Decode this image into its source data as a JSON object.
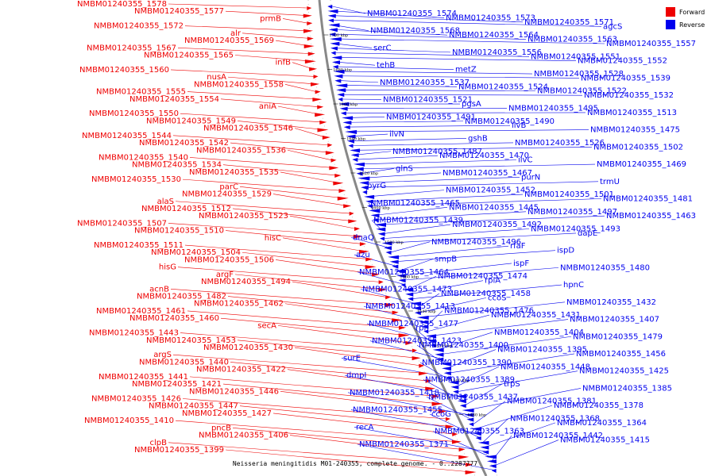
{
  "caption": "Neisseria meningitidis M01-240355, complete genome. - 0..2287777",
  "legend": [
    {
      "label": "Forward",
      "color": "#ee0000"
    },
    {
      "label": "Reverse",
      "color": "#0000ee"
    }
  ],
  "colors": {
    "forward": "#ee0000",
    "reverse": "#0000ee",
    "backbone": "#888888"
  },
  "ticks": [
    "1700 kbp",
    "1680 kbp",
    "1660 kbp",
    "1640 kbp",
    "1620 kbp",
    "1600 kbp",
    "1580 kbp",
    "1560 kbp",
    "1540 kbp",
    "1520 kbp",
    "1500 kbp",
    "1480 kbp"
  ],
  "forward_labels": [
    "NMBM01240355_1578",
    "NMBM01240355_1577",
    "prmB",
    "NMBM01240355_1572",
    "alr",
    "NMBM01240355_1569",
    "NMBM01240355_1567",
    "NMBM01240355_1565",
    "infB",
    "NMBM01240355_1560",
    "nusA",
    "NMBM01240355_1558",
    "NMBM01240355_1555",
    "NMBM01240355_1554",
    "aniA",
    "NMBM01240355_1550",
    "NMBM01240355_1549",
    "NMBM01240355_1546",
    "NMBM01240355_1544",
    "NMBM01240355_1542",
    "NMBM01240355_1536",
    "NMBM01240355_1540",
    "NMBM01240355_1534",
    "NMBM01240355_1535",
    "NMBM01240355_1530",
    "parC",
    "NMBM01240355_1529",
    "alaS",
    "NMBM01240355_1512",
    "NMBM01240355_1523",
    "NMBM01240355_1507",
    "NMBM01240355_1510",
    "hisC",
    "NMBM01240355_1511",
    "NMBM01240355_1504",
    "NMBM01240355_1506",
    "hisG",
    "argF",
    "NMBM01240355_1494",
    "acnB",
    "NMBM01240355_1482",
    "NMBM01240355_1462",
    "NMBM01240355_1461",
    "NMBM01240355_1460",
    "secA",
    "NMBM01240355_1443",
    "NMBM01240355_1453",
    "NMBM01240355_1430",
    "argS",
    "NMBM01240355_1440",
    "NMBM01240355_1422",
    "NMBM01240355_1441",
    "NMBM01240355_1421",
    "NMBM01240355_1446",
    "NMBM01240355_1426",
    "NMBM01240355_1447",
    "NMBM01240355_1427",
    "NMBM01240355_1410",
    "pncB",
    "NMBM01240355_1406",
    "clpB",
    "NMBM01240355_1399"
  ],
  "reverse_labels": [
    "NMBM01240355_1574",
    "NMBM01240355_1573",
    "NMBM01240355_1571",
    "agcS",
    "NMBM01240355_1568",
    "NMBM01240355_1564",
    "NMBM01240355_1563",
    "NMBM01240355_1557",
    "serC",
    "NMBM01240355_1556",
    "NMBM01240355_1551",
    "NMBM01240355_1552",
    "tehB",
    "metZ",
    "NMBM01240355_1528",
    "NMBM01240355_1539",
    "NMBM01240355_1537",
    "NMBM01240355_1524",
    "NMBM01240355_1522",
    "NMBM01240355_1532",
    "NMBM01240355_1521",
    "pgsA",
    "NMBM01240355_1495",
    "NMBM01240355_1513",
    "NMBM01240355_1491",
    "NMBM01240355_1490",
    "ilvB",
    "NMBM01240355_1475",
    "ilvN",
    "gshB",
    "NMBM01240355_1526",
    "NMBM01240355_1502",
    "NMBM01240355_1487",
    "NMBM01240355_1470",
    "ilvC",
    "NMBM01240355_1469",
    "glnS",
    "NMBM01240355_1467",
    "purN",
    "trmU",
    "pyrG",
    "NMBM01240355_1452",
    "NMBM01240355_1501",
    "NMBM01240355_1481",
    "NMBM01240355_1465",
    "NMBM01240355_1445",
    "NMBM01240355_1497",
    "NMBM01240355_1463",
    "NMBM01240355_1439",
    "NMBM01240355_1492",
    "NMBM01240355_1493",
    "dapE",
    "dnaQ",
    "NMBM01240355_1496",
    "rfaF",
    "ispD",
    "azu",
    "smpB",
    "ispF",
    "NMBM01240355_1480",
    "NMBM01240355_1464",
    "NMBM01240355_1474",
    "rpiA",
    "hpnC",
    "NMBM01240355_1473",
    "NMBM01240355_1458",
    "ccoS",
    "NMBM01240355_1432",
    "NMBM01240355_1413",
    "NMBM01240355_1476",
    "NMBM01240355_1431",
    "NMBM01240355_1407",
    "NMBM01240355_1477",
    "rph",
    "NMBM01240355_1404",
    "NMBM01240355_1479",
    "NMBM01240355_1423",
    "NMBM01240355_1400",
    "NMBM01240355_1395",
    "NMBM01240355_1456",
    "surE",
    "NMBM01240355_1390",
    "NMBM01240355_1448",
    "NMBM01240355_1425",
    "dmpI",
    "NMBM01240355_1389",
    "trpS",
    "NMBM01240355_1385",
    "NMBM01240355_1418",
    "NMBM01240355_1437",
    "NMBM01240355_1381",
    "NMBM01240355_1378",
    "NMBM01240355_1455",
    "ccoG",
    "NMBM01240355_1368",
    "NMBM01240355_1364",
    "recA",
    "NMBM01240355_1363",
    "NMBM01240355_1442",
    "NMBM01240355_1415",
    "NMBM01240355_1371"
  ]
}
